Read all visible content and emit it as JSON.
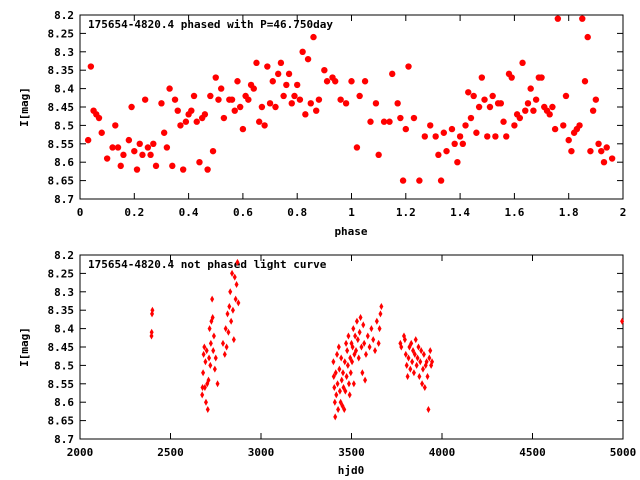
{
  "colors": {
    "points": "#ff0000",
    "axis": "#000000",
    "background": "#ffffff"
  },
  "chart_data": [
    {
      "type": "scatter",
      "title": "175654-4820.4 phased with P=46.750day",
      "xlabel": "phase",
      "ylabel": "I[mag]",
      "xlim": [
        0,
        2
      ],
      "ylim": [
        8.7,
        8.2
      ],
      "y_inverted": true,
      "grid": false,
      "marker": "filled-star",
      "xticks": [
        "0",
        "0.2",
        "0.4",
        "0.6",
        "0.8",
        "1",
        "1.2",
        "1.4",
        "1.6",
        "1.8",
        "2"
      ],
      "yticks": [
        "8.2",
        "8.25",
        "8.3",
        "8.35",
        "8.4",
        "8.45",
        "8.5",
        "8.55",
        "8.6",
        "8.65",
        "8.7"
      ],
      "points": [
        [
          0.03,
          8.54
        ],
        [
          0.04,
          8.34
        ],
        [
          0.05,
          8.46
        ],
        [
          0.06,
          8.47
        ],
        [
          0.07,
          8.48
        ],
        [
          0.08,
          8.52
        ],
        [
          0.1,
          8.59
        ],
        [
          0.12,
          8.56
        ],
        [
          0.13,
          8.5
        ],
        [
          0.14,
          8.56
        ],
        [
          0.15,
          8.61
        ],
        [
          0.16,
          8.58
        ],
        [
          0.18,
          8.54
        ],
        [
          0.19,
          8.45
        ],
        [
          0.2,
          8.57
        ],
        [
          0.21,
          8.62
        ],
        [
          0.22,
          8.55
        ],
        [
          0.23,
          8.58
        ],
        [
          0.24,
          8.43
        ],
        [
          0.25,
          8.56
        ],
        [
          0.26,
          8.58
        ],
        [
          0.27,
          8.55
        ],
        [
          0.28,
          8.61
        ],
        [
          0.3,
          8.44
        ],
        [
          0.31,
          8.52
        ],
        [
          0.32,
          8.56
        ],
        [
          0.33,
          8.4
        ],
        [
          0.34,
          8.61
        ],
        [
          0.35,
          8.43
        ],
        [
          0.36,
          8.46
        ],
        [
          0.37,
          8.5
        ],
        [
          0.38,
          8.62
        ],
        [
          0.39,
          8.49
        ],
        [
          0.4,
          8.47
        ],
        [
          0.41,
          8.46
        ],
        [
          0.42,
          8.42
        ],
        [
          0.43,
          8.49
        ],
        [
          0.44,
          8.6
        ],
        [
          0.45,
          8.48
        ],
        [
          0.46,
          8.47
        ],
        [
          0.47,
          8.62
        ],
        [
          0.48,
          8.42
        ],
        [
          0.49,
          8.57
        ],
        [
          0.5,
          8.37
        ],
        [
          0.51,
          8.43
        ],
        [
          0.52,
          8.4
        ],
        [
          0.53,
          8.48
        ],
        [
          0.55,
          8.43
        ],
        [
          0.56,
          8.43
        ],
        [
          0.57,
          8.46
        ],
        [
          0.58,
          8.38
        ],
        [
          0.59,
          8.45
        ],
        [
          0.6,
          8.51
        ],
        [
          0.61,
          8.42
        ],
        [
          0.62,
          8.43
        ],
        [
          0.63,
          8.39
        ],
        [
          0.64,
          8.4
        ],
        [
          0.65,
          8.33
        ],
        [
          0.66,
          8.49
        ],
        [
          0.67,
          8.45
        ],
        [
          0.68,
          8.5
        ],
        [
          0.69,
          8.34
        ],
        [
          0.7,
          8.44
        ],
        [
          0.71,
          8.38
        ],
        [
          0.72,
          8.45
        ],
        [
          0.73,
          8.36
        ],
        [
          0.74,
          8.33
        ],
        [
          0.75,
          8.42
        ],
        [
          0.76,
          8.39
        ],
        [
          0.77,
          8.36
        ],
        [
          0.78,
          8.44
        ],
        [
          0.79,
          8.42
        ],
        [
          0.8,
          8.39
        ],
        [
          0.81,
          8.43
        ],
        [
          0.82,
          8.3
        ],
        [
          0.83,
          8.47
        ],
        [
          0.84,
          8.32
        ],
        [
          0.85,
          8.44
        ],
        [
          0.86,
          8.26
        ],
        [
          0.87,
          8.46
        ],
        [
          0.88,
          8.43
        ],
        [
          0.9,
          8.35
        ],
        [
          0.91,
          8.38
        ],
        [
          0.93,
          8.37
        ],
        [
          0.94,
          8.38
        ],
        [
          0.96,
          8.43
        ],
        [
          0.98,
          8.44
        ],
        [
          1.0,
          8.38
        ],
        [
          1.02,
          8.56
        ],
        [
          1.03,
          8.42
        ],
        [
          1.05,
          8.38
        ],
        [
          1.07,
          8.49
        ],
        [
          1.09,
          8.44
        ],
        [
          1.1,
          8.58
        ],
        [
          1.12,
          8.49
        ],
        [
          1.14,
          8.49
        ],
        [
          1.15,
          8.36
        ],
        [
          1.17,
          8.44
        ],
        [
          1.18,
          8.48
        ],
        [
          1.19,
          8.65
        ],
        [
          1.2,
          8.51
        ],
        [
          1.21,
          8.34
        ],
        [
          1.23,
          8.48
        ],
        [
          1.25,
          8.65
        ],
        [
          1.27,
          8.53
        ],
        [
          1.29,
          8.5
        ],
        [
          1.31,
          8.53
        ],
        [
          1.32,
          8.58
        ],
        [
          1.33,
          8.65
        ],
        [
          1.34,
          8.52
        ],
        [
          1.35,
          8.57
        ],
        [
          1.37,
          8.51
        ],
        [
          1.38,
          8.55
        ],
        [
          1.39,
          8.6
        ],
        [
          1.4,
          8.53
        ],
        [
          1.41,
          8.55
        ],
        [
          1.42,
          8.5
        ],
        [
          1.43,
          8.41
        ],
        [
          1.44,
          8.48
        ],
        [
          1.45,
          8.42
        ],
        [
          1.46,
          8.52
        ],
        [
          1.47,
          8.45
        ],
        [
          1.48,
          8.37
        ],
        [
          1.49,
          8.43
        ],
        [
          1.5,
          8.53
        ],
        [
          1.51,
          8.45
        ],
        [
          1.52,
          8.42
        ],
        [
          1.53,
          8.53
        ],
        [
          1.54,
          8.44
        ],
        [
          1.55,
          8.44
        ],
        [
          1.56,
          8.49
        ],
        [
          1.57,
          8.53
        ],
        [
          1.58,
          8.36
        ],
        [
          1.59,
          8.37
        ],
        [
          1.6,
          8.5
        ],
        [
          1.61,
          8.47
        ],
        [
          1.62,
          8.48
        ],
        [
          1.63,
          8.33
        ],
        [
          1.64,
          8.46
        ],
        [
          1.65,
          8.44
        ],
        [
          1.66,
          8.4
        ],
        [
          1.67,
          8.46
        ],
        [
          1.68,
          8.43
        ],
        [
          1.69,
          8.37
        ],
        [
          1.7,
          8.37
        ],
        [
          1.71,
          8.45
        ],
        [
          1.72,
          8.46
        ],
        [
          1.73,
          8.47
        ],
        [
          1.74,
          8.45
        ],
        [
          1.75,
          8.51
        ],
        [
          1.76,
          8.21
        ],
        [
          1.78,
          8.5
        ],
        [
          1.79,
          8.42
        ],
        [
          1.8,
          8.54
        ],
        [
          1.81,
          8.57
        ],
        [
          1.82,
          8.52
        ],
        [
          1.83,
          8.51
        ],
        [
          1.84,
          8.5
        ],
        [
          1.85,
          8.21
        ],
        [
          1.86,
          8.38
        ],
        [
          1.87,
          8.26
        ],
        [
          1.88,
          8.57
        ],
        [
          1.89,
          8.46
        ],
        [
          1.9,
          8.43
        ],
        [
          1.91,
          8.55
        ],
        [
          1.92,
          8.57
        ],
        [
          1.93,
          8.6
        ],
        [
          1.94,
          8.56
        ],
        [
          1.96,
          8.59
        ]
      ]
    },
    {
      "type": "scatter",
      "title": "175654-4820.4 not phased light curve",
      "xlabel": "hjd0",
      "ylabel": "I[mag]",
      "xlim": [
        2000,
        5000
      ],
      "ylim": [
        8.7,
        8.2
      ],
      "y_inverted": true,
      "grid": false,
      "marker": "filled-diamond",
      "xticks": [
        "2000",
        "2500",
        "3000",
        "3500",
        "4000",
        "4500",
        "5000"
      ],
      "yticks": [
        "8.2",
        "8.25",
        "8.3",
        "8.35",
        "8.4",
        "8.45",
        "8.5",
        "8.55",
        "8.6",
        "8.65",
        "8.7"
      ],
      "points": [
        [
          2395,
          8.42
        ],
        [
          2396,
          8.41
        ],
        [
          2398,
          8.36
        ],
        [
          2400,
          8.35
        ],
        [
          2675,
          8.58
        ],
        [
          2677,
          8.56
        ],
        [
          2680,
          8.52
        ],
        [
          2683,
          8.47
        ],
        [
          2687,
          8.45
        ],
        [
          2690,
          8.56
        ],
        [
          2693,
          8.49
        ],
        [
          2696,
          8.6
        ],
        [
          2700,
          8.46
        ],
        [
          2703,
          8.55
        ],
        [
          2706,
          8.62
        ],
        [
          2710,
          8.54
        ],
        [
          2713,
          8.48
        ],
        [
          2716,
          8.4
        ],
        [
          2720,
          8.5
        ],
        [
          2723,
          8.44
        ],
        [
          2726,
          8.38
        ],
        [
          2730,
          8.32
        ],
        [
          2733,
          8.37
        ],
        [
          2736,
          8.46
        ],
        [
          2740,
          8.42
        ],
        [
          2745,
          8.51
        ],
        [
          2750,
          8.48
        ],
        [
          2760,
          8.55
        ],
        [
          2790,
          8.44
        ],
        [
          2800,
          8.47
        ],
        [
          2805,
          8.4
        ],
        [
          2810,
          8.45
        ],
        [
          2815,
          8.36
        ],
        [
          2820,
          8.41
        ],
        [
          2825,
          8.34
        ],
        [
          2830,
          8.3
        ],
        [
          2835,
          8.38
        ],
        [
          2840,
          8.25
        ],
        [
          2845,
          8.35
        ],
        [
          2850,
          8.43
        ],
        [
          2855,
          8.26
        ],
        [
          2860,
          8.32
        ],
        [
          2865,
          8.28
        ],
        [
          2870,
          8.22
        ],
        [
          2875,
          8.33
        ],
        [
          3400,
          8.49
        ],
        [
          3402,
          8.53
        ],
        [
          3405,
          8.56
        ],
        [
          3408,
          8.6
        ],
        [
          3410,
          8.64
        ],
        [
          3413,
          8.52
        ],
        [
          3416,
          8.58
        ],
        [
          3420,
          8.47
        ],
        [
          3423,
          8.55
        ],
        [
          3426,
          8.62
        ],
        [
          3430,
          8.45
        ],
        [
          3433,
          8.51
        ],
        [
          3436,
          8.57
        ],
        [
          3440,
          8.6
        ],
        [
          3443,
          8.48
        ],
        [
          3446,
          8.54
        ],
        [
          3450,
          8.61
        ],
        [
          3453,
          8.52
        ],
        [
          3456,
          8.56
        ],
        [
          3460,
          8.62
        ],
        [
          3463,
          8.49
        ],
        [
          3466,
          8.57
        ],
        [
          3470,
          8.44
        ],
        [
          3473,
          8.53
        ],
        [
          3476,
          8.46
        ],
        [
          3480,
          8.5
        ],
        [
          3483,
          8.42
        ],
        [
          3486,
          8.55
        ],
        [
          3490,
          8.58
        ],
        [
          3493,
          8.48
        ],
        [
          3496,
          8.52
        ],
        [
          3500,
          8.44
        ],
        [
          3503,
          8.49
        ],
        [
          3506,
          8.45
        ],
        [
          3510,
          8.4
        ],
        [
          3513,
          8.55
        ],
        [
          3516,
          8.47
        ],
        [
          3520,
          8.42
        ],
        [
          3525,
          8.46
        ],
        [
          3530,
          8.38
        ],
        [
          3535,
          8.43
        ],
        [
          3540,
          8.48
        ],
        [
          3545,
          8.41
        ],
        [
          3550,
          8.37
        ],
        [
          3555,
          8.45
        ],
        [
          3560,
          8.52
        ],
        [
          3565,
          8.39
        ],
        [
          3570,
          8.44
        ],
        [
          3575,
          8.54
        ],
        [
          3580,
          8.47
        ],
        [
          3590,
          8.42
        ],
        [
          3600,
          8.45
        ],
        [
          3610,
          8.4
        ],
        [
          3620,
          8.43
        ],
        [
          3630,
          8.46
        ],
        [
          3640,
          8.38
        ],
        [
          3650,
          8.44
        ],
        [
          3655,
          8.4
        ],
        [
          3660,
          8.36
        ],
        [
          3665,
          8.34
        ],
        [
          3770,
          8.44
        ],
        [
          3775,
          8.45
        ],
        [
          3790,
          8.42
        ],
        [
          3795,
          8.43
        ],
        [
          3800,
          8.47
        ],
        [
          3805,
          8.5
        ],
        [
          3810,
          8.53
        ],
        [
          3815,
          8.48
        ],
        [
          3820,
          8.45
        ],
        [
          3825,
          8.51
        ],
        [
          3830,
          8.44
        ],
        [
          3835,
          8.49
        ],
        [
          3840,
          8.46
        ],
        [
          3845,
          8.52
        ],
        [
          3850,
          8.47
        ],
        [
          3855,
          8.43
        ],
        [
          3860,
          8.5
        ],
        [
          3865,
          8.48
        ],
        [
          3870,
          8.45
        ],
        [
          3875,
          8.53
        ],
        [
          3880,
          8.49
        ],
        [
          3885,
          8.46
        ],
        [
          3890,
          8.55
        ],
        [
          3895,
          8.51
        ],
        [
          3900,
          8.47
        ],
        [
          3905,
          8.56
        ],
        [
          3910,
          8.5
        ],
        [
          3915,
          8.49
        ],
        [
          3920,
          8.53
        ],
        [
          3925,
          8.62
        ],
        [
          3930,
          8.48
        ],
        [
          3935,
          8.46
        ],
        [
          3940,
          8.5
        ],
        [
          3945,
          8.49
        ],
        [
          4995,
          8.38
        ]
      ]
    }
  ]
}
